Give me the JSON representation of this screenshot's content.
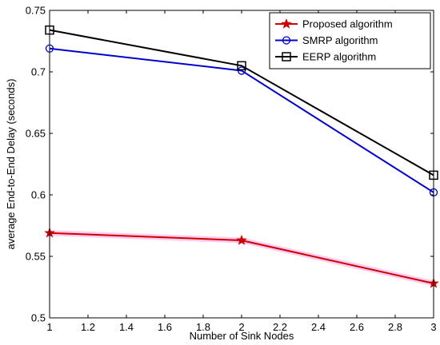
{
  "chart_data": {
    "type": "line",
    "title": "",
    "xlabel": "Number of Sink Nodes",
    "ylabel": "average End-to-End Delay (seconds)",
    "x": [
      1,
      2,
      3
    ],
    "xlim": [
      1,
      3
    ],
    "ylim": [
      0.5,
      0.75
    ],
    "xticks": [
      "1",
      "1.2",
      "1.4",
      "1.6",
      "1.8",
      "2",
      "2.2",
      "2.4",
      "2.6",
      "2.8",
      "3"
    ],
    "yticks": [
      "0.5",
      "0.55",
      "0.6",
      "0.65",
      "0.7",
      "0.75"
    ],
    "grid": false,
    "legend_position": "top-right",
    "series": [
      {
        "name": "Proposed algorithm",
        "values": [
          0.569,
          0.563,
          0.528
        ],
        "color": "#cc0000",
        "glow": "#ff66cc",
        "marker": "star"
      },
      {
        "name": "SMRP algorithm",
        "values": [
          0.719,
          0.701,
          0.602
        ],
        "color": "#0000cc",
        "marker": "circle"
      },
      {
        "name": "EERP algorithm",
        "values": [
          0.734,
          0.705,
          0.616
        ],
        "color": "#000000",
        "marker": "square"
      }
    ]
  }
}
